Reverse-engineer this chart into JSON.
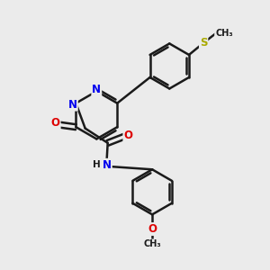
{
  "background_color": "#ebebeb",
  "bond_color": "#1a1a1a",
  "bond_width": 1.8,
  "atom_colors": {
    "N": "#0000ee",
    "O": "#dd0000",
    "S": "#aaaa00",
    "C": "#1a1a1a",
    "H": "#1a1a1a"
  },
  "font_size": 7.5,
  "figsize": [
    3.0,
    3.0
  ],
  "dpi": 100
}
